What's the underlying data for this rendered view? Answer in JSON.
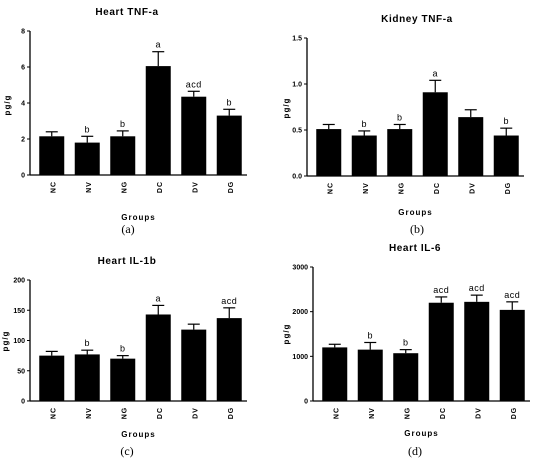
{
  "chart_data": [
    {
      "type": "bar",
      "title": "Heart TNF-a",
      "xlabel": "Groups",
      "ylabel": "pg/g",
      "categories": [
        "NC",
        "NV",
        "NG",
        "DC",
        "DV",
        "DG"
      ],
      "values": [
        2.15,
        1.8,
        2.15,
        6.05,
        4.35,
        3.3
      ],
      "errors": [
        0.25,
        0.35,
        0.3,
        0.8,
        0.3,
        0.35
      ],
      "annotations": [
        "",
        "b",
        "b",
        "a",
        "acd",
        "b"
      ],
      "ylim": [
        0,
        8
      ],
      "yticks": [
        "0",
        "2",
        "4",
        "6",
        "8"
      ],
      "caption": "(a)"
    },
    {
      "type": "bar",
      "title": "Kidney TNF-a",
      "xlabel": "Groups",
      "ylabel": "pg/g",
      "categories": [
        "NC",
        "NV",
        "NG",
        "DC",
        "DV",
        "DG"
      ],
      "values": [
        0.51,
        0.44,
        0.51,
        0.91,
        0.64,
        0.44
      ],
      "errors": [
        0.05,
        0.05,
        0.05,
        0.13,
        0.08,
        0.08
      ],
      "annotations": [
        "",
        "b",
        "b",
        "a",
        "",
        "b"
      ],
      "ylim": [
        0,
        1.5
      ],
      "yticks": [
        "0.0",
        "0.5",
        "1.0",
        "1.5"
      ],
      "caption": "(b)"
    },
    {
      "type": "bar",
      "title": "Heart IL-1b",
      "xlabel": "Groups",
      "ylabel": "pg/g",
      "categories": [
        "NC",
        "NV",
        "NG",
        "DC",
        "DV",
        "DG"
      ],
      "values": [
        75,
        77,
        70,
        143,
        118,
        137
      ],
      "errors": [
        7,
        7,
        5,
        15,
        9,
        17
      ],
      "annotations": [
        "",
        "b",
        "b",
        "a",
        "",
        "acd"
      ],
      "ylim": [
        0,
        200
      ],
      "yticks": [
        "0",
        "50",
        "100",
        "150",
        "200"
      ],
      "caption": "(c)"
    },
    {
      "type": "bar",
      "title": "Heart IL-6",
      "xlabel": "Groups",
      "ylabel": "pg/g",
      "categories": [
        "NC",
        "NV",
        "NG",
        "DC",
        "DV",
        "DG"
      ],
      "values": [
        1200,
        1150,
        1070,
        2200,
        2220,
        2040
      ],
      "errors": [
        70,
        160,
        80,
        130,
        150,
        180
      ],
      "annotations": [
        "",
        "b",
        "b",
        "acd",
        "acd",
        "acd"
      ],
      "ylim": [
        0,
        3000
      ],
      "yticks": [
        "0",
        "1000",
        "2000",
        "3000"
      ],
      "caption": "(d)"
    }
  ]
}
